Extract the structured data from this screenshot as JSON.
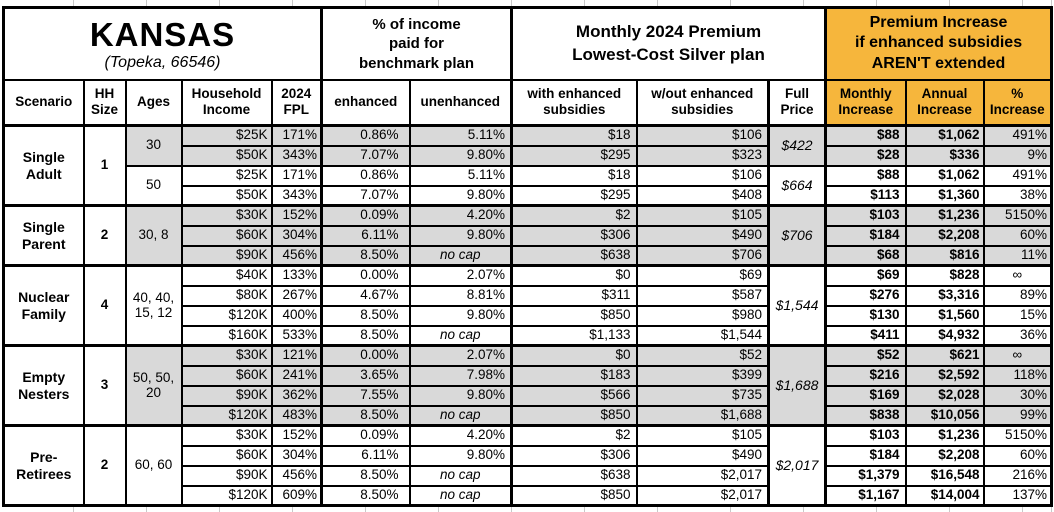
{
  "colors": {
    "accent_orange": "#F6B63C",
    "row_shade": "#D9D9D9",
    "border": "#000000",
    "gridline": "#C9C9C9"
  },
  "title": {
    "region": "KANSAS",
    "subtitle": "(Topeka, 66546)"
  },
  "sections": {
    "income_pct": "% of income\npaid for\nbenchmark plan",
    "premium": "Monthly 2024 Premium\nLowest-Cost Silver plan",
    "increase": "Premium Increase\nif enhanced subsidies\nAREN'T extended"
  },
  "columns": [
    {
      "label": "Scenario"
    },
    {
      "label": "HH\nSize"
    },
    {
      "label": "Ages"
    },
    {
      "label": "Household\nIncome"
    },
    {
      "label": "2024\nFPL"
    },
    {
      "label": "enhanced"
    },
    {
      "label": "unenhanced"
    },
    {
      "label": "with enhanced\nsubsidies"
    },
    {
      "label": "w/out enhanced\nsubsidies"
    },
    {
      "label": "Full\nPrice"
    },
    {
      "label": "Monthly\nIncrease"
    },
    {
      "label": "Annual\nIncrease"
    },
    {
      "label": "%\nIncrease"
    }
  ],
  "table": {
    "groups": [
      {
        "scenario": "Single\nAdult",
        "hh_size": "1",
        "subgroups": [
          {
            "ages": "30",
            "shaded": true,
            "full_price": "$422",
            "rows": [
              {
                "income": "$25K",
                "fpl": "171%",
                "enhanced": "0.86%",
                "unenhanced": "5.11%",
                "with_subsidies": "$18",
                "without_subsidies": "$106",
                "monthly": "$88",
                "annual": "$1,062",
                "pct": "491%"
              },
              {
                "income": "$50K",
                "fpl": "343%",
                "enhanced": "7.07%",
                "unenhanced": "9.80%",
                "with_subsidies": "$295",
                "without_subsidies": "$323",
                "monthly": "$28",
                "annual": "$336",
                "pct": "9%"
              }
            ]
          },
          {
            "ages": "50",
            "shaded": false,
            "full_price": "$664",
            "rows": [
              {
                "income": "$25K",
                "fpl": "171%",
                "enhanced": "0.86%",
                "unenhanced": "5.11%",
                "with_subsidies": "$18",
                "without_subsidies": "$106",
                "monthly": "$88",
                "annual": "$1,062",
                "pct": "491%"
              },
              {
                "income": "$50K",
                "fpl": "343%",
                "enhanced": "7.07%",
                "unenhanced": "9.80%",
                "with_subsidies": "$295",
                "without_subsidies": "$408",
                "monthly": "$113",
                "annual": "$1,360",
                "pct": "38%"
              }
            ]
          }
        ]
      },
      {
        "scenario": "Single\nParent",
        "hh_size": "2",
        "subgroups": [
          {
            "ages": "30, 8",
            "shaded": true,
            "full_price": "$706",
            "rows": [
              {
                "income": "$30K",
                "fpl": "152%",
                "enhanced": "0.09%",
                "unenhanced": "4.20%",
                "with_subsidies": "$2",
                "without_subsidies": "$105",
                "monthly": "$103",
                "annual": "$1,236",
                "pct": "5150%"
              },
              {
                "income": "$60K",
                "fpl": "304%",
                "enhanced": "6.11%",
                "unenhanced": "9.80%",
                "with_subsidies": "$306",
                "without_subsidies": "$490",
                "monthly": "$184",
                "annual": "$2,208",
                "pct": "60%"
              },
              {
                "income": "$90K",
                "fpl": "456%",
                "enhanced": "8.50%",
                "unenhanced": "no cap",
                "with_subsidies": "$638",
                "without_subsidies": "$706",
                "monthly": "$68",
                "annual": "$816",
                "pct": "11%"
              }
            ]
          }
        ]
      },
      {
        "scenario": "Nuclear\nFamily",
        "hh_size": "4",
        "subgroups": [
          {
            "ages": "40, 40,\n15, 12",
            "shaded": false,
            "full_price": "$1,544",
            "rows": [
              {
                "income": "$40K",
                "fpl": "133%",
                "enhanced": "0.00%",
                "unenhanced": "2.07%",
                "with_subsidies": "$0",
                "without_subsidies": "$69",
                "monthly": "$69",
                "annual": "$828",
                "pct": "∞"
              },
              {
                "income": "$80K",
                "fpl": "267%",
                "enhanced": "4.67%",
                "unenhanced": "8.81%",
                "with_subsidies": "$311",
                "without_subsidies": "$587",
                "monthly": "$276",
                "annual": "$3,316",
                "pct": "89%"
              },
              {
                "income": "$120K",
                "fpl": "400%",
                "enhanced": "8.50%",
                "unenhanced": "9.80%",
                "with_subsidies": "$850",
                "without_subsidies": "$980",
                "monthly": "$130",
                "annual": "$1,560",
                "pct": "15%"
              },
              {
                "income": "$160K",
                "fpl": "533%",
                "enhanced": "8.50%",
                "unenhanced": "no cap",
                "with_subsidies": "$1,133",
                "without_subsidies": "$1,544",
                "monthly": "$411",
                "annual": "$4,932",
                "pct": "36%"
              }
            ]
          }
        ]
      },
      {
        "scenario": "Empty\nNesters",
        "hh_size": "3",
        "subgroups": [
          {
            "ages": "50, 50,\n20",
            "shaded": true,
            "full_price": "$1,688",
            "rows": [
              {
                "income": "$30K",
                "fpl": "121%",
                "enhanced": "0.00%",
                "unenhanced": "2.07%",
                "with_subsidies": "$0",
                "without_subsidies": "$52",
                "monthly": "$52",
                "annual": "$621",
                "pct": "∞"
              },
              {
                "income": "$60K",
                "fpl": "241%",
                "enhanced": "3.65%",
                "unenhanced": "7.98%",
                "with_subsidies": "$183",
                "without_subsidies": "$399",
                "monthly": "$216",
                "annual": "$2,592",
                "pct": "118%"
              },
              {
                "income": "$90K",
                "fpl": "362%",
                "enhanced": "7.55%",
                "unenhanced": "9.80%",
                "with_subsidies": "$566",
                "without_subsidies": "$735",
                "monthly": "$169",
                "annual": "$2,028",
                "pct": "30%"
              },
              {
                "income": "$120K",
                "fpl": "483%",
                "enhanced": "8.50%",
                "unenhanced": "no cap",
                "with_subsidies": "$850",
                "without_subsidies": "$1,688",
                "monthly": "$838",
                "annual": "$10,056",
                "pct": "99%"
              }
            ]
          }
        ]
      },
      {
        "scenario": "Pre-\nRetirees",
        "hh_size": "2",
        "subgroups": [
          {
            "ages": "60, 60",
            "shaded": false,
            "full_price": "$2,017",
            "rows": [
              {
                "income": "$30K",
                "fpl": "152%",
                "enhanced": "0.09%",
                "unenhanced": "4.20%",
                "with_subsidies": "$2",
                "without_subsidies": "$105",
                "monthly": "$103",
                "annual": "$1,236",
                "pct": "5150%"
              },
              {
                "income": "$60K",
                "fpl": "304%",
                "enhanced": "6.11%",
                "unenhanced": "9.80%",
                "with_subsidies": "$306",
                "without_subsidies": "$490",
                "monthly": "$184",
                "annual": "$2,208",
                "pct": "60%"
              },
              {
                "income": "$90K",
                "fpl": "456%",
                "enhanced": "8.50%",
                "unenhanced": "no cap",
                "with_subsidies": "$638",
                "without_subsidies": "$2,017",
                "monthly": "$1,379",
                "annual": "$16,548",
                "pct": "216%"
              },
              {
                "income": "$120K",
                "fpl": "609%",
                "enhanced": "8.50%",
                "unenhanced": "no cap",
                "with_subsidies": "$850",
                "without_subsidies": "$2,017",
                "monthly": "$1,167",
                "annual": "$14,004",
                "pct": "137%"
              }
            ]
          }
        ]
      }
    ]
  }
}
